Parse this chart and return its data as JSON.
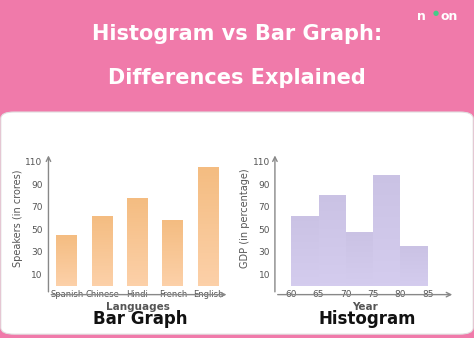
{
  "bg_color": "#f07aaa",
  "panel_color": "#ffffff",
  "title_line1": "Histogram vs Bar Graph:",
  "title_line2": "Differences Explained",
  "title_color": "#ffffff",
  "title_fontsize": 15,
  "bar_categories": [
    "Spanish",
    "Chinese",
    "Hindi",
    "French",
    "English"
  ],
  "bar_values": [
    45,
    62,
    78,
    58,
    105
  ],
  "bar_color": "#f9c88a",
  "bar_xlabel": "Languages",
  "bar_ylabel": "Speakers (in crores)",
  "bar_title": "Bar Graph",
  "bar_yticks": [
    10,
    30,
    50,
    70,
    90,
    110
  ],
  "bar_ylim": [
    0,
    120
  ],
  "hist_edges": [
    60,
    65,
    70,
    75,
    80,
    85
  ],
  "hist_values": [
    62,
    80,
    48,
    98,
    35
  ],
  "hist_color": "#c8c0e8",
  "hist_xlabel": "Year",
  "hist_ylabel": "GDP (in percentage)",
  "hist_title": "Histogram",
  "hist_yticks": [
    10,
    30,
    50,
    70,
    90,
    110
  ],
  "hist_ylim": [
    0,
    120
  ],
  "hist_xticks": [
    60,
    65,
    70,
    75,
    80,
    85
  ],
  "axis_color": "#888888",
  "tick_color": "#555555",
  "tick_fontsize": 6.5,
  "label_fontsize": 7.5,
  "chart_title_fontsize": 12,
  "noon_color_n": "#ffffff",
  "noon_color_eon": "#ffffff",
  "noon_dot_color": "#44cc88"
}
